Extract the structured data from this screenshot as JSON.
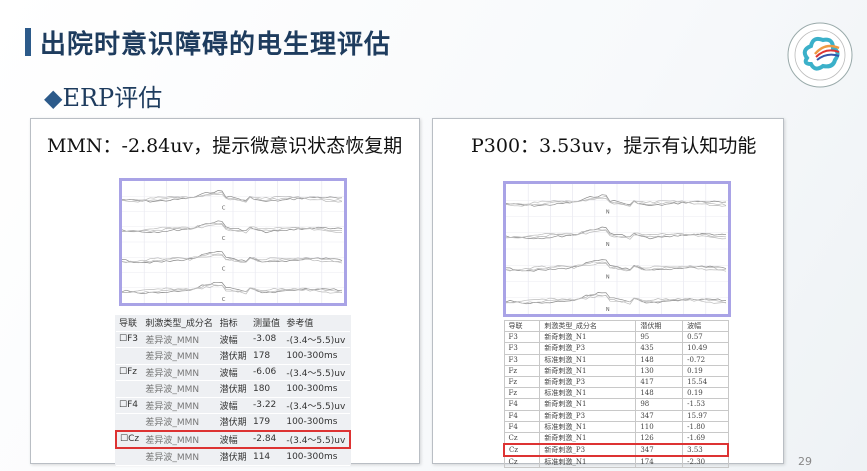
{
  "slide": {
    "title": "出院时意识障碍的电生理评估",
    "subtitle": "ERP评估",
    "subtitle_bullet": "◆",
    "page_number": "29",
    "accent": "#2c5a8a"
  },
  "logo": {
    "text": "中山大学附属第三医院"
  },
  "mmn": {
    "heading": "MMN：-2.84uv，提示微意识状态恢复期",
    "headers": [
      "导联",
      "刺激类型_成分名",
      "指标",
      "测量值",
      "参考值"
    ],
    "rows": [
      [
        "☐F3",
        "差异波_MMN",
        "波幅",
        "-3.08",
        "-(3.4～5.5)uv"
      ],
      [
        "",
        "差异波_MMN",
        "潜伏期",
        "178",
        "100-300ms"
      ],
      [
        "☐Fz",
        "差异波_MMN",
        "波幅",
        "-6.06",
        "-(3.4～5.5)uv"
      ],
      [
        "",
        "差异波_MMN",
        "潜伏期",
        "180",
        "100-300ms"
      ],
      [
        "☐F4",
        "差异波_MMN",
        "波幅",
        "-3.22",
        "-(3.4～5.5)uv"
      ],
      [
        "",
        "差异波_MMN",
        "潜伏期",
        "179",
        "100-300ms"
      ],
      [
        "☐Cz",
        "差异波_MMN",
        "波幅",
        "-2.84",
        "-(3.4～5.5)uv"
      ],
      [
        "",
        "差异波_MMN",
        "潜伏期",
        "114",
        "100-300ms"
      ]
    ],
    "highlight_row": 6
  },
  "p300": {
    "heading": "P300：3.53uv，提示有认知功能",
    "headers": [
      "导联",
      "刺激类型_成分名",
      "潜伏期",
      "波幅"
    ],
    "rows": [
      [
        "F3",
        "新奇刺激_N1",
        "95",
        "0.57"
      ],
      [
        "F3",
        "新奇刺激_P3",
        "435",
        "10.49"
      ],
      [
        "F3",
        "标准刺激_N1",
        "148",
        "-0.72"
      ],
      [
        "Fz",
        "新奇刺激_N1",
        "130",
        "0.19"
      ],
      [
        "Fz",
        "新奇刺激_P3",
        "417",
        "15.54"
      ],
      [
        "Fz",
        "标准刺激_N1",
        "148",
        "0.19"
      ],
      [
        "F4",
        "新奇刺激_N1",
        "98",
        "-1.53"
      ],
      [
        "F4",
        "新奇刺激_P3",
        "347",
        "15.97"
      ],
      [
        "F4",
        "标准刺激_N1",
        "110",
        "-1.80"
      ],
      [
        "Cz",
        "新奇刺激_N1",
        "126",
        "-1.69"
      ],
      [
        "Cz",
        "新奇刺激_P3",
        "347",
        "3.53"
      ],
      [
        "Cz",
        "标准刺激_N1",
        "174",
        "-2.30"
      ]
    ],
    "highlight_row": 10
  }
}
